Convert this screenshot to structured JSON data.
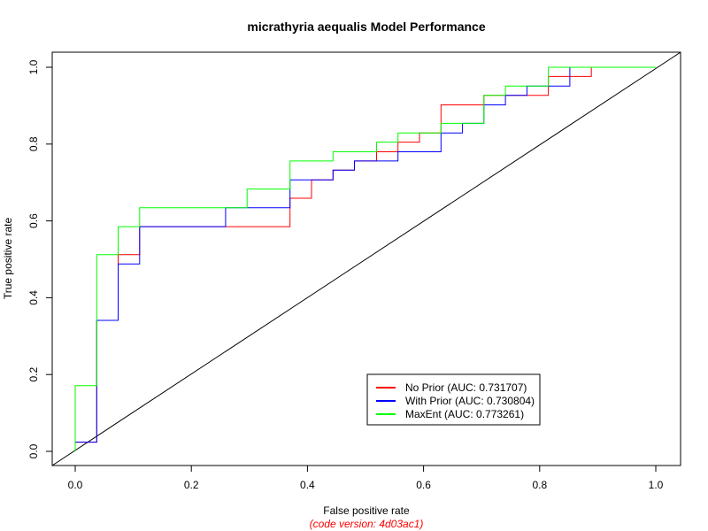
{
  "chart_data": {
    "type": "line",
    "title": "micrathyria aequalis Model Performance",
    "xlabel": "False positive rate",
    "ylabel": "True positive rate",
    "caption": "(code version: 4d03ac1)",
    "caption_color": "#ff0000",
    "xlim": [
      0,
      1
    ],
    "ylim": [
      0,
      1
    ],
    "x_ticks": [
      "0.0",
      "0.2",
      "0.4",
      "0.6",
      "0.8",
      "1.0"
    ],
    "y_ticks": [
      "0.0",
      "0.2",
      "0.4",
      "0.6",
      "0.8",
      "1.0"
    ],
    "grid": false,
    "legend_position": "bottom-right",
    "diagonal_reference": true,
    "series": [
      {
        "name": "No Prior (AUC: 0.731707)",
        "color": "#ff0000",
        "points": [
          [
            0,
            0
          ],
          [
            0,
            0.024
          ],
          [
            0.037,
            0.024
          ],
          [
            0.037,
            0.341
          ],
          [
            0.074,
            0.341
          ],
          [
            0.074,
            0.512
          ],
          [
            0.111,
            0.512
          ],
          [
            0.111,
            0.585
          ],
          [
            0.37,
            0.585
          ],
          [
            0.37,
            0.659
          ],
          [
            0.407,
            0.659
          ],
          [
            0.407,
            0.707
          ],
          [
            0.444,
            0.707
          ],
          [
            0.444,
            0.732
          ],
          [
            0.481,
            0.732
          ],
          [
            0.481,
            0.756
          ],
          [
            0.519,
            0.756
          ],
          [
            0.519,
            0.78
          ],
          [
            0.556,
            0.78
          ],
          [
            0.556,
            0.805
          ],
          [
            0.593,
            0.805
          ],
          [
            0.593,
            0.829
          ],
          [
            0.63,
            0.829
          ],
          [
            0.63,
            0.902
          ],
          [
            0.704,
            0.902
          ],
          [
            0.704,
            0.927
          ],
          [
            0.815,
            0.927
          ],
          [
            0.815,
            0.976
          ],
          [
            0.889,
            0.976
          ],
          [
            0.889,
            1.0
          ],
          [
            1.0,
            1.0
          ]
        ]
      },
      {
        "name": "With Prior (AUC: 0.730804)",
        "color": "#0000ff",
        "points": [
          [
            0,
            0
          ],
          [
            0,
            0.024
          ],
          [
            0.037,
            0.024
          ],
          [
            0.037,
            0.341
          ],
          [
            0.074,
            0.341
          ],
          [
            0.074,
            0.488
          ],
          [
            0.111,
            0.488
          ],
          [
            0.111,
            0.585
          ],
          [
            0.259,
            0.585
          ],
          [
            0.259,
            0.634
          ],
          [
            0.37,
            0.634
          ],
          [
            0.37,
            0.707
          ],
          [
            0.444,
            0.707
          ],
          [
            0.444,
            0.732
          ],
          [
            0.481,
            0.732
          ],
          [
            0.481,
            0.756
          ],
          [
            0.556,
            0.756
          ],
          [
            0.556,
            0.78
          ],
          [
            0.63,
            0.78
          ],
          [
            0.63,
            0.829
          ],
          [
            0.667,
            0.829
          ],
          [
            0.667,
            0.854
          ],
          [
            0.704,
            0.854
          ],
          [
            0.704,
            0.902
          ],
          [
            0.741,
            0.902
          ],
          [
            0.741,
            0.927
          ],
          [
            0.778,
            0.927
          ],
          [
            0.778,
            0.951
          ],
          [
            0.852,
            0.951
          ],
          [
            0.852,
            1.0
          ],
          [
            1.0,
            1.0
          ]
        ]
      },
      {
        "name": "MaxEnt (AUC: 0.773261)",
        "color": "#00ff00",
        "points": [
          [
            0,
            0
          ],
          [
            0,
            0.171
          ],
          [
            0.037,
            0.171
          ],
          [
            0.037,
            0.512
          ],
          [
            0.074,
            0.512
          ],
          [
            0.074,
            0.585
          ],
          [
            0.111,
            0.585
          ],
          [
            0.111,
            0.634
          ],
          [
            0.296,
            0.634
          ],
          [
            0.296,
            0.683
          ],
          [
            0.37,
            0.683
          ],
          [
            0.37,
            0.756
          ],
          [
            0.444,
            0.756
          ],
          [
            0.444,
            0.78
          ],
          [
            0.519,
            0.78
          ],
          [
            0.519,
            0.805
          ],
          [
            0.556,
            0.805
          ],
          [
            0.556,
            0.829
          ],
          [
            0.63,
            0.829
          ],
          [
            0.63,
            0.854
          ],
          [
            0.704,
            0.854
          ],
          [
            0.704,
            0.927
          ],
          [
            0.741,
            0.927
          ],
          [
            0.741,
            0.951
          ],
          [
            0.815,
            0.951
          ],
          [
            0.815,
            1.0
          ],
          [
            1.0,
            1.0
          ]
        ]
      }
    ]
  }
}
